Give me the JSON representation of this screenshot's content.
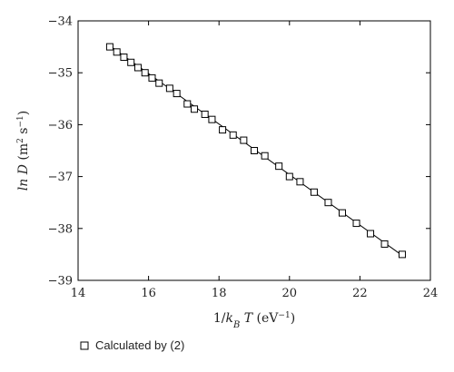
{
  "chart_data": {
    "type": "scatter",
    "xlim": [
      14,
      24
    ],
    "ylim": [
      -39,
      -34
    ],
    "x_ticks": [
      14,
      16,
      18,
      20,
      22,
      24
    ],
    "y_ticks": [
      -34,
      -35,
      -36,
      -37,
      -38,
      -39
    ],
    "x_tick_labels": [
      "14",
      "16",
      "18",
      "20",
      "22",
      "24"
    ],
    "y_tick_labels": [
      "−34",
      "−35",
      "−36",
      "−37",
      "−38",
      "−39"
    ],
    "grid": false,
    "legend_position": "bottom-left outside",
    "series": [
      {
        "name": "Calculated by (2)",
        "marker": "open-square",
        "x": [
          14.9,
          15.1,
          15.3,
          15.5,
          15.7,
          15.9,
          16.1,
          16.3,
          16.6,
          16.8,
          17.1,
          17.3,
          17.6,
          17.8,
          18.1,
          18.4,
          18.7,
          19.0,
          19.3,
          19.7,
          20.0,
          20.3,
          20.7,
          21.1,
          21.5,
          21.9,
          22.3,
          22.7,
          23.2
        ],
        "y": [
          -34.5,
          -34.6,
          -34.7,
          -34.8,
          -34.9,
          -35.0,
          -35.1,
          -35.2,
          -35.3,
          -35.4,
          -35.6,
          -35.7,
          -35.8,
          -35.9,
          -36.1,
          -36.2,
          -36.3,
          -36.5,
          -36.6,
          -36.8,
          -37.0,
          -37.1,
          -37.3,
          -37.5,
          -37.7,
          -37.9,
          -38.1,
          -38.3,
          -38.5
        ]
      }
    ],
    "fit_line": {
      "x": [
        14.9,
        23.2
      ],
      "y": [
        -34.48,
        -38.52
      ]
    }
  },
  "colors": {
    "line": "#000000",
    "marker": "#000000"
  }
}
